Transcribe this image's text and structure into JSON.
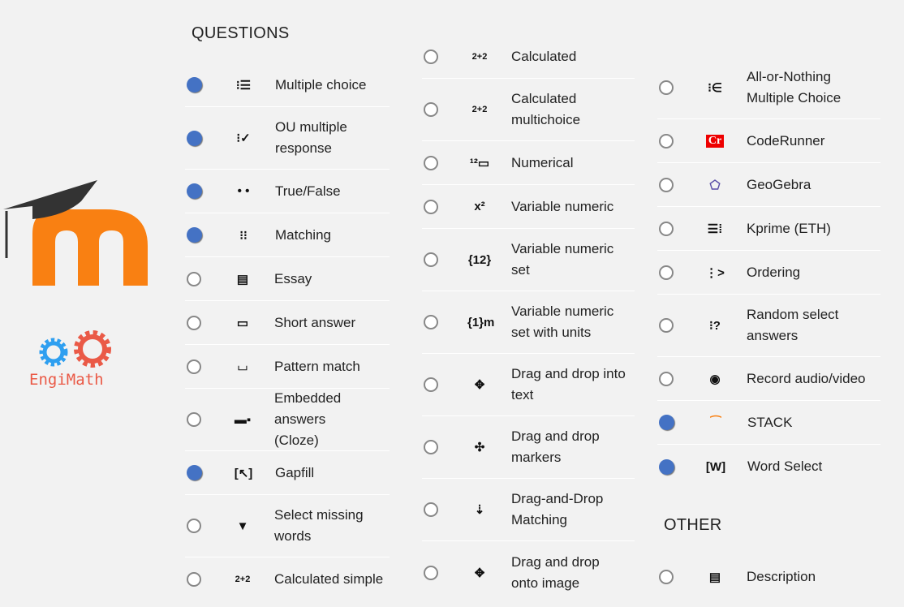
{
  "questions_header": "QUESTIONS",
  "other_header": "OTHER",
  "logos": {
    "moodle": "m",
    "engimath": "EngiMath"
  },
  "columns": [
    [
      {
        "label": "Multiple choice",
        "icon": "list-icon",
        "glyph": "⁝☰",
        "selected": true
      },
      {
        "label": "OU multiple\nresponse",
        "icon": "checklist-icon",
        "glyph": "⁝✓",
        "selected": true
      },
      {
        "label": "True/False",
        "icon": "two-dots-icon",
        "glyph": "• •",
        "selected": true
      },
      {
        "label": "Matching",
        "icon": "matching-icon",
        "glyph": "⁝⁝",
        "selected": true
      },
      {
        "label": "Essay",
        "icon": "document-icon",
        "glyph": "▤",
        "selected": false
      },
      {
        "label": "Short answer",
        "icon": "short-answer-box-icon",
        "glyph": "▭",
        "selected": false
      },
      {
        "label": "Pattern match",
        "icon": "pattern-icon",
        "glyph": "⌴",
        "selected": false
      },
      {
        "label": "Embedded answers\n(Cloze)",
        "icon": "cloze-icon",
        "glyph": "▬▪",
        "selected": false
      },
      {
        "label": "Gapfill",
        "icon": "gapfill-icon",
        "glyph": "[↖]",
        "selected": true
      },
      {
        "label": "Select missing\nwords",
        "icon": "triangle-down-icon",
        "glyph": "▼",
        "selected": false
      },
      {
        "label": "Calculated simple",
        "icon": "calculator-icon",
        "glyph": "2+2",
        "selected": false
      }
    ],
    [
      {
        "label": "Calculated",
        "icon": "calculated-icon",
        "glyph": "2+2",
        "selected": false
      },
      {
        "label": "Calculated\nmultichoice",
        "icon": "calculated-multi-icon",
        "glyph": "2+2",
        "selected": false
      },
      {
        "label": "Numerical",
        "icon": "numerical-icon",
        "glyph": "¹²▭",
        "selected": false
      },
      {
        "label": "Variable numeric",
        "icon": "variable-numeric-icon",
        "glyph": "x²",
        "selected": false
      },
      {
        "label": "Variable numeric\nset",
        "icon": "variable-set-icon",
        "glyph": "{12}",
        "selected": false
      },
      {
        "label": "Variable numeric\nset with units",
        "icon": "variable-units-icon",
        "glyph": "{1}m",
        "selected": false
      },
      {
        "label": "Drag and drop into\ntext",
        "icon": "move-arrows-icon",
        "glyph": "✥",
        "selected": false
      },
      {
        "label": "Drag and drop\nmarkers",
        "icon": "markers-icon",
        "glyph": "✣",
        "selected": false
      },
      {
        "label": "Drag-and-Drop\nMatching",
        "icon": "dd-matching-icon",
        "glyph": "⇣",
        "selected": false
      },
      {
        "label": "Drag and drop\nonto image",
        "icon": "move-icon",
        "glyph": "✥",
        "selected": false
      }
    ],
    [
      {
        "label": "All-or-Nothing\nMultiple Choice",
        "icon": "element-of-icon",
        "glyph": "⁝∈",
        "selected": false
      },
      {
        "label": "CodeRunner",
        "icon": "coderunner-icon",
        "glyph": "Cr",
        "selected": false
      },
      {
        "label": "GeoGebra",
        "icon": "geogebra-icon",
        "glyph": "⬠",
        "selected": false
      },
      {
        "label": "Kprime (ETH)",
        "icon": "kprime-icon",
        "glyph": "☰⁞",
        "selected": false
      },
      {
        "label": "Ordering",
        "icon": "ordering-icon",
        "glyph": "⋮>",
        "selected": false
      },
      {
        "label": "Random select\nanswers",
        "icon": "random-icon",
        "glyph": "⁝?",
        "selected": false
      },
      {
        "label": "Record audio/video",
        "icon": "record-icon",
        "glyph": "◉",
        "selected": false
      },
      {
        "label": "STACK",
        "icon": "stack-icon",
        "glyph": "⁀",
        "selected": true
      },
      {
        "label": "Word Select",
        "icon": "word-select-icon",
        "glyph": "[W]",
        "selected": true
      }
    ]
  ],
  "other": [
    {
      "label": "Description",
      "icon": "description-icon",
      "glyph": "▤",
      "selected": false
    }
  ],
  "colors": {
    "selected": "#4472c4",
    "moodle_orange": "#f98012",
    "gear_blue": "#2e9ff0",
    "gear_red": "#ea5a47"
  }
}
